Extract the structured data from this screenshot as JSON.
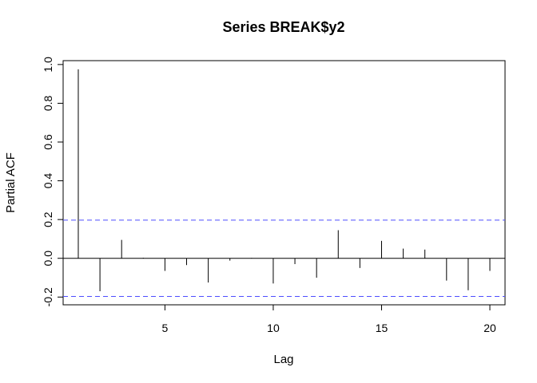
{
  "chart_data": {
    "type": "bar",
    "title": "Series  BREAK$y2",
    "xlabel": "Lag",
    "ylabel": "Partial ACF",
    "xlim": [
      0.3,
      20.7
    ],
    "ylim": [
      -0.24,
      1.02
    ],
    "x_ticks": [
      5,
      10,
      15,
      20
    ],
    "y_ticks": [
      -0.2,
      0.0,
      0.2,
      0.4,
      0.6,
      0.8,
      1.0
    ],
    "x_tick_labels": [
      "5",
      "10",
      "15",
      "20"
    ],
    "y_tick_labels": [
      "-0.2",
      "0.0",
      "0.2",
      "0.4",
      "0.6",
      "0.8",
      "1.0"
    ],
    "lags": [
      1,
      2,
      3,
      4,
      5,
      6,
      7,
      8,
      9,
      10,
      11,
      12,
      13,
      14,
      15,
      16,
      17,
      18,
      19,
      20
    ],
    "values": [
      0.975,
      -0.17,
      0.095,
      0.003,
      -0.065,
      -0.035,
      -0.125,
      -0.012,
      0.002,
      -0.13,
      -0.03,
      -0.1,
      0.145,
      -0.05,
      0.09,
      0.05,
      0.045,
      -0.115,
      -0.165,
      -0.065
    ],
    "confidence_bound": 0.197,
    "zero_line": true,
    "grid": false,
    "colors": {
      "bars": "#000000",
      "zero_line": "#000000",
      "confidence_lines": "#4d4dff"
    }
  }
}
